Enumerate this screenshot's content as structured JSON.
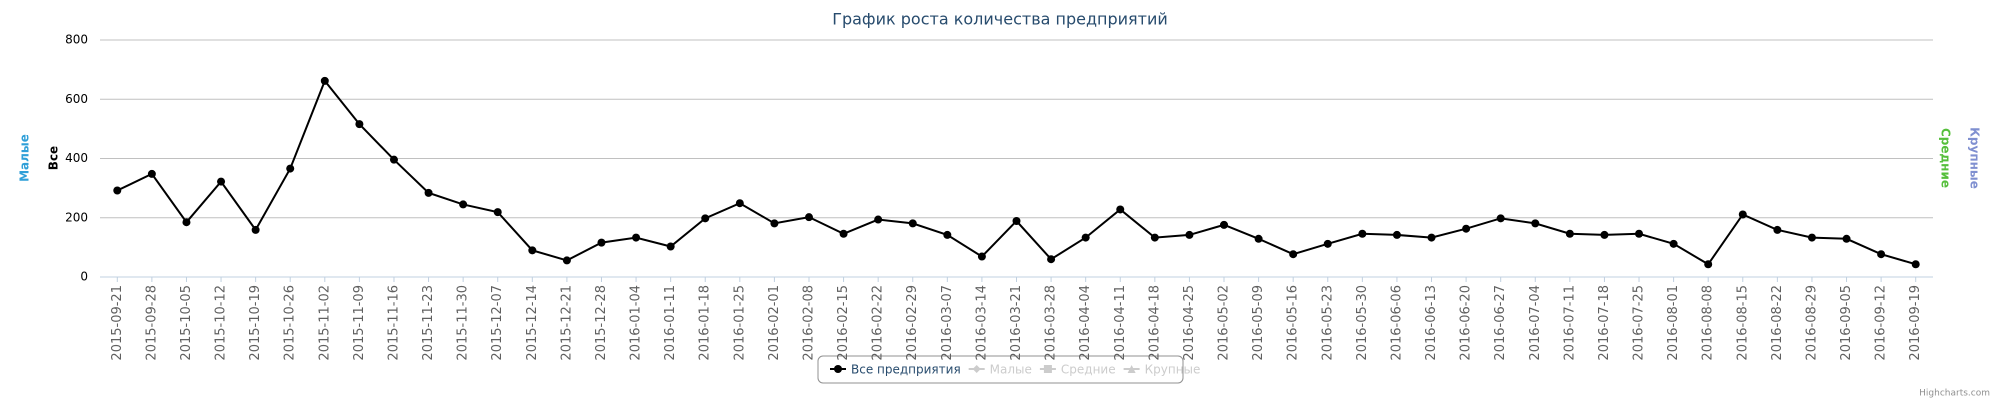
{
  "chart_data": {
    "type": "line",
    "title": "График роста количества предприятий",
    "categories": [
      "2015-09-21",
      "2015-09-28",
      "2015-10-05",
      "2015-10-12",
      "2015-10-19",
      "2015-10-26",
      "2015-11-02",
      "2015-11-09",
      "2015-11-16",
      "2015-11-23",
      "2015-11-30",
      "2015-12-07",
      "2015-12-14",
      "2015-12-21",
      "2015-12-28",
      "2016-01-04",
      "2016-01-11",
      "2016-01-18",
      "2016-01-25",
      "2016-02-01",
      "2016-02-08",
      "2016-02-15",
      "2016-02-22",
      "2016-02-29",
      "2016-03-07",
      "2016-03-14",
      "2016-03-21",
      "2016-03-28",
      "2016-04-04",
      "2016-04-11",
      "2016-04-18",
      "2016-04-25",
      "2016-05-02",
      "2016-05-09",
      "2016-05-16",
      "2016-05-23",
      "2016-05-30",
      "2016-06-06",
      "2016-06-13",
      "2016-06-20",
      "2016-06-27",
      "2016-07-04",
      "2016-07-11",
      "2016-07-18",
      "2016-07-25",
      "2016-08-01",
      "2016-08-08",
      "2016-08-15",
      "2016-08-22",
      "2016-08-29",
      "2016-09-05",
      "2016-09-12",
      "2016-09-19"
    ],
    "series": [
      {
        "name": "Все предприятия",
        "color": "#000000",
        "marker": "circle",
        "values": [
          292,
          348,
          185,
          322,
          159,
          366,
          662,
          516,
          396,
          284,
          245,
          219,
          90,
          56,
          116,
          133,
          103,
          198,
          249,
          181,
          202,
          146,
          194,
          181,
          142,
          69,
          189,
          60,
          133,
          228,
          133,
          142,
          176,
          129,
          77,
          112,
          146,
          142,
          133,
          163,
          198,
          181,
          146,
          142,
          146,
          112,
          43,
          211,
          159,
          133,
          129,
          77,
          43
        ]
      },
      {
        "name": "Малые",
        "color": "#2f9fd8",
        "marker": "diamond",
        "visible": false
      },
      {
        "name": "Средние",
        "color": "#55bf3b",
        "marker": "square",
        "visible": false
      },
      {
        "name": "Крупные",
        "color": "#7f8fd0",
        "marker": "triangle",
        "visible": false
      }
    ],
    "yaxis_titles": [
      {
        "text": "Малые",
        "color": "#2f9fd8",
        "side": "left"
      },
      {
        "text": "Все",
        "color": "#000000",
        "side": "left"
      },
      {
        "text": "Средние",
        "color": "#55bf3b",
        "side": "right"
      },
      {
        "text": "Крупные",
        "color": "#7f8fd0",
        "side": "right"
      }
    ],
    "ylim": [
      0,
      800
    ],
    "yticks": [
      0,
      200,
      400,
      600,
      800
    ],
    "grid": true,
    "legend": "bottom",
    "credits": "Highcharts.com"
  }
}
